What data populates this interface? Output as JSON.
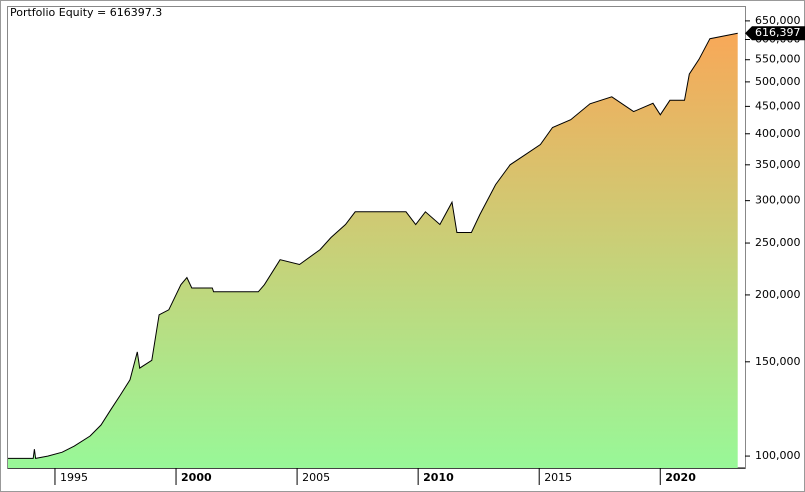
{
  "chart_data": {
    "type": "area",
    "title": "Portfolio Equity = 616397.3",
    "log_scale": true,
    "x": [
      1993.06,
      1994.1,
      1994.15,
      1994.2,
      1994.7,
      1995.3,
      1995.8,
      1996.45,
      1996.9,
      1997.3,
      1997.7,
      1998.1,
      1998.4,
      1998.5,
      1999.0,
      1999.3,
      1999.7,
      2000.2,
      2000.45,
      2000.65,
      2001.5,
      2001.55,
      2003.4,
      2003.65,
      2004.3,
      2005.1,
      2005.95,
      2006.4,
      2007.0,
      2007.4,
      2009.5,
      2009.9,
      2010.3,
      2010.9,
      2011.4,
      2011.6,
      2012.2,
      2012.55,
      2013.2,
      2013.8,
      2014.4,
      2015.05,
      2015.55,
      2016.3,
      2017.1,
      2018.0,
      2018.9,
      2019.7,
      2020.0,
      2020.4,
      2021.0,
      2021.2,
      2021.6,
      2022.05,
      2023.2
    ],
    "series": [
      {
        "name": "Portfolio Equity",
        "color": "#000000",
        "values": [
          99000,
          99000,
          103000,
          99000,
          100000,
          101700,
          104400,
          109000,
          114300,
          122000,
          130000,
          138800,
          156500,
          146000,
          151000,
          183600,
          187600,
          209000,
          215500,
          206000,
          206000,
          202700,
          202700,
          209000,
          232700,
          228000,
          243000,
          256000,
          270800,
          286000,
          286000,
          270800,
          286000,
          270800,
          298000,
          261600,
          261600,
          282600,
          321500,
          350000,
          365000,
          382000,
          411000,
          425000,
          455000,
          469000,
          440000,
          456000,
          434000,
          462000,
          462000,
          517000,
          551000,
          602000,
          616397.3
        ],
        "value_labels": [
          null,
          null,
          null,
          null,
          null,
          null,
          null,
          null,
          null,
          null,
          null,
          null,
          null,
          null,
          null,
          null,
          null,
          null,
          null,
          null,
          null,
          null,
          null,
          null,
          null,
          null,
          null,
          null,
          null,
          null,
          null,
          null,
          null,
          null,
          null,
          null,
          null,
          null,
          null,
          null,
          null,
          null,
          null,
          null,
          null,
          null,
          null,
          null,
          null,
          null,
          null,
          null,
          null,
          null,
          "616,397"
        ]
      }
    ],
    "fill_colors": [
      "#98f898",
      "#f8a858"
    ],
    "xlim": [
      1993.06,
      2023.5
    ],
    "xticks": [
      1995,
      2000,
      2005,
      2010,
      2015,
      2020
    ],
    "ylim": [
      95000,
      690000
    ],
    "yticks": [
      {
        "value": 100000,
        "label": "100,000"
      },
      {
        "value": 150000,
        "label": "150,000"
      },
      {
        "value": 200000,
        "label": "200,000"
      },
      {
        "value": 250000,
        "label": "250,000"
      },
      {
        "value": 300000,
        "label": "300,000"
      },
      {
        "value": 350000,
        "label": "350,000"
      },
      {
        "value": 400000,
        "label": "400,000"
      },
      {
        "value": 450000,
        "label": "450,000"
      },
      {
        "value": 500000,
        "label": "500,000"
      },
      {
        "value": 550000,
        "label": "550,000"
      },
      {
        "value": 600000,
        "label": "600,000"
      },
      {
        "value": 650000,
        "label": "650,000"
      }
    ]
  }
}
